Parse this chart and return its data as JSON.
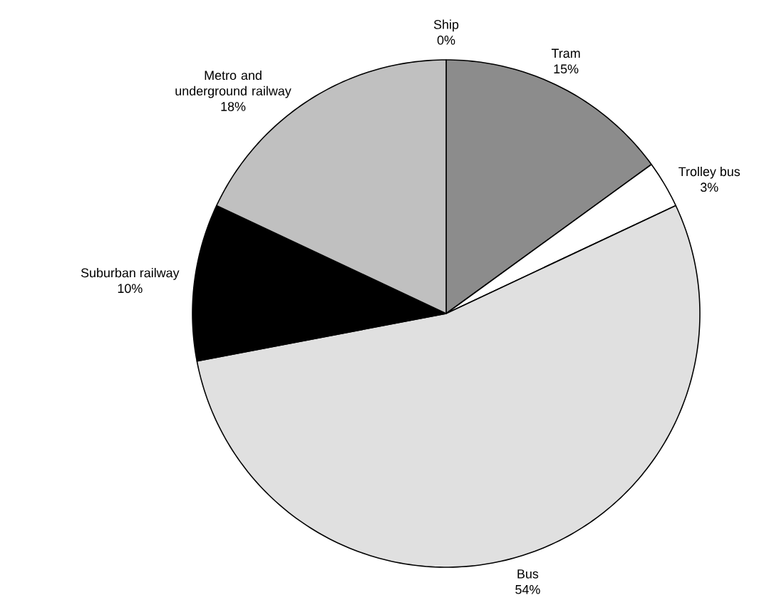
{
  "chart_data": {
    "type": "pie",
    "categories": [
      "Ship",
      "Tram",
      "Trolley bus",
      "Bus",
      "Suburban railway",
      "Metro and underground railway"
    ],
    "values": [
      0,
      15,
      3,
      54,
      10,
      18
    ],
    "value_labels": [
      "0%",
      "15%",
      "3%",
      "54%",
      "10%",
      "18%"
    ],
    "colors": [
      "#808080",
      "#8c8c8c",
      "#ffffff",
      "#e0e0e0",
      "#000000",
      "#c0c0c0"
    ]
  }
}
